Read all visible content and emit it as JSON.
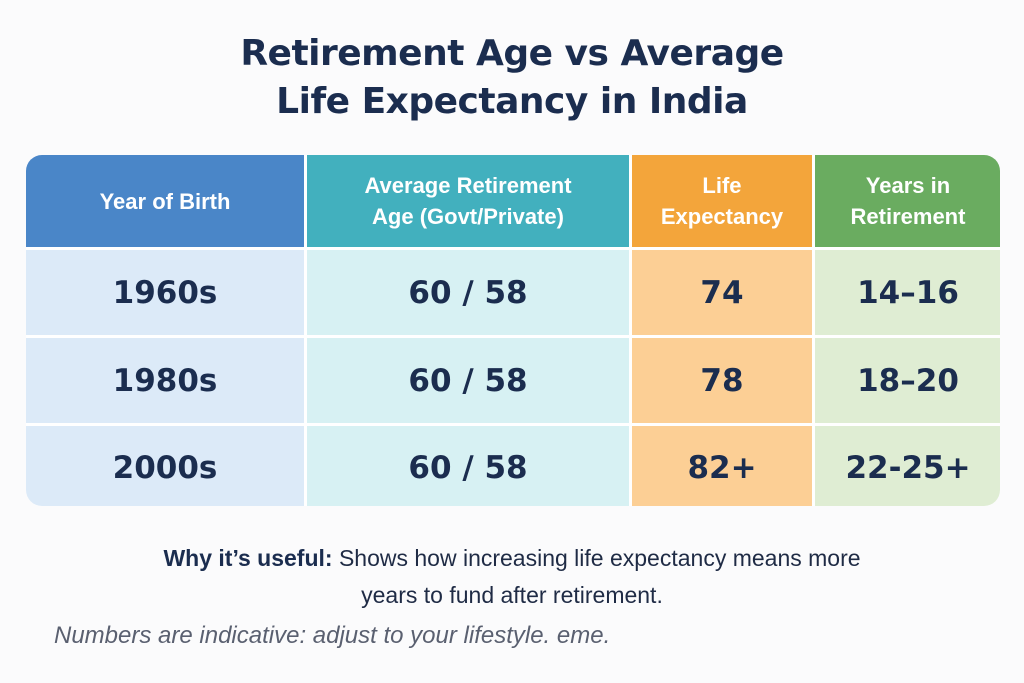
{
  "title": {
    "line1": "Retirement Age vs Average",
    "line2": "Life Expectancy in India"
  },
  "table": {
    "headers": [
      {
        "line1": "Year of Birth",
        "line2": ""
      },
      {
        "line1": "Average Retirement",
        "line2": "Age (Govt/Private)"
      },
      {
        "line1": "Life",
        "line2": "Expectancy"
      },
      {
        "line1": "Years in",
        "line2": "Retirement"
      }
    ],
    "rows": [
      {
        "year": "1960s",
        "retirement_age": "60 / 58",
        "life_expectancy": "74",
        "years_in_retirement": "14–16"
      },
      {
        "year": "1980s",
        "retirement_age": "60 / 58",
        "life_expectancy": "78",
        "years_in_retirement": "18–20"
      },
      {
        "year": "2000s",
        "retirement_age": "60 / 58",
        "life_expectancy": "82+",
        "years_in_retirement": "22-25+"
      }
    ]
  },
  "colors": {
    "header_year": "#4a86c8",
    "header_retirement": "#42b0be",
    "header_life": "#f3a53b",
    "header_years": "#6aac60",
    "text_dark": "#1b2d4f"
  },
  "note": {
    "label": "Why it’s useful:",
    "text_line1": " Shows how increasing life expectancy means more",
    "text_line2": "years to fund after retirement."
  },
  "disclaimer": "Numbers are indicative: adjust to your lifestyle. eme."
}
